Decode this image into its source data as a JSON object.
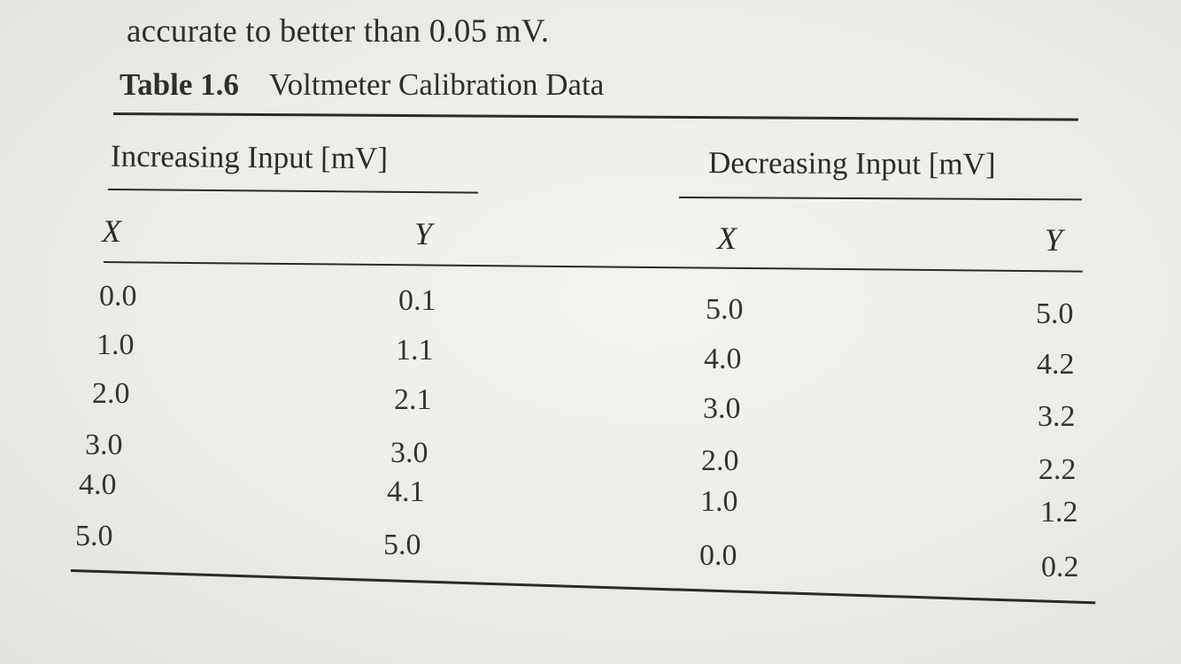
{
  "intro_text": "accurate to better than 0.05 mV.",
  "table": {
    "number": "Table 1.6",
    "title": "Voltmeter Calibration Data",
    "groups": [
      {
        "title": "Increasing Input [mV]",
        "columns": [
          "X",
          "Y"
        ],
        "rows": [
          [
            "0.0",
            "0.1"
          ],
          [
            "1.0",
            "1.1"
          ],
          [
            "2.0",
            "2.1"
          ],
          [
            "3.0",
            "3.0"
          ],
          [
            "4.0",
            "4.1"
          ],
          [
            "5.0",
            "5.0"
          ]
        ]
      },
      {
        "title": "Decreasing Input [mV]",
        "columns": [
          "X",
          "Y"
        ],
        "rows": [
          [
            "5.0",
            "5.0"
          ],
          [
            "4.0",
            "4.2"
          ],
          [
            "3.0",
            "3.2"
          ],
          [
            "2.0",
            "2.2"
          ],
          [
            "1.0",
            "1.2"
          ],
          [
            "0.0",
            "0.2"
          ]
        ]
      }
    ]
  }
}
